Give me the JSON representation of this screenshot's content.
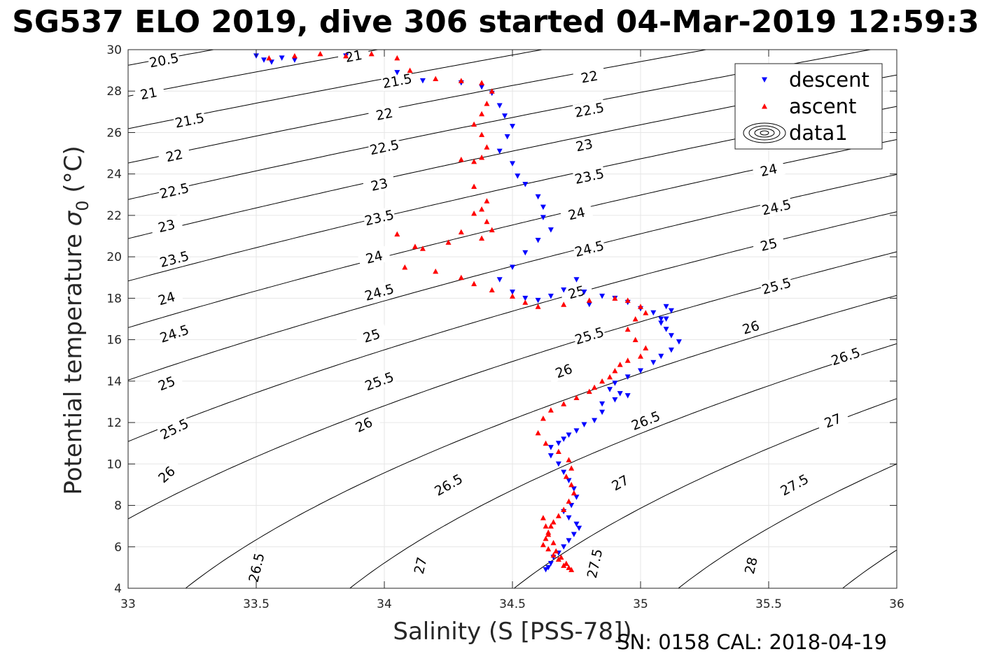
{
  "chart_data": {
    "type": "scatter",
    "title": "SG537 ELO 2019, dive 306 started 04-Mar-2019 12:59:3",
    "xlabel": "Salinity (S [PSS-78])",
    "ylabel_main": "Potential temperature ",
    "ylabel_sigma": "σ",
    "ylabel_sub": "0",
    "ylabel_unit": " (°C)",
    "footer": "SN: 0158  CAL: 2018-04-19",
    "xlim": [
      33,
      36
    ],
    "ylim": [
      4,
      30
    ],
    "grid": true,
    "legend_position": "top-right",
    "x_ticks": [
      "33",
      "33.5",
      "34",
      "34.5",
      "35",
      "35.5",
      "36"
    ],
    "y_ticks": [
      "4",
      "6",
      "8",
      "10",
      "12",
      "14",
      "16",
      "18",
      "20",
      "22",
      "24",
      "26",
      "28",
      "30"
    ],
    "legend": [
      {
        "label": "descent",
        "color": "#0000ff",
        "marker": "triangle-down"
      },
      {
        "label": "ascent",
        "color": "#ff0000",
        "marker": "triangle-up"
      },
      {
        "label": "data1",
        "color": "#000000",
        "marker": "contour"
      }
    ],
    "contour_levels": [
      20.5,
      21,
      21.5,
      22,
      22.5,
      23,
      23.5,
      24,
      24.5,
      25,
      25.5,
      26,
      26.5,
      27,
      27.5,
      28
    ],
    "contour_label_text": [
      "20.5",
      "21",
      "21.5",
      "22",
      "22.5",
      "23",
      "23.5",
      "24",
      "24.5",
      "25",
      "25.5",
      "26",
      "26.5",
      "27",
      "27.5",
      "28"
    ],
    "contour_labels": [
      {
        "level": 20.5,
        "s": 33.14,
        "t": 29.5
      },
      {
        "level": 21,
        "s": 33.08,
        "t": 27.9
      },
      {
        "level": 21,
        "s": 33.88,
        "t": 29.7
      },
      {
        "level": 21.5,
        "s": 33.24,
        "t": 26.6
      },
      {
        "level": 21.5,
        "s": 34.05,
        "t": 28.5
      },
      {
        "level": 22,
        "s": 33.18,
        "t": 24.9
      },
      {
        "level": 22,
        "s": 34.0,
        "t": 26.9
      },
      {
        "level": 22,
        "s": 34.8,
        "t": 28.7
      },
      {
        "level": 22.5,
        "s": 33.18,
        "t": 23.2
      },
      {
        "level": 22.5,
        "s": 34.0,
        "t": 25.3
      },
      {
        "level": 22.5,
        "s": 34.8,
        "t": 27.1
      },
      {
        "level": 23,
        "s": 33.15,
        "t": 21.5
      },
      {
        "level": 23,
        "s": 33.98,
        "t": 23.5
      },
      {
        "level": 23,
        "s": 34.78,
        "t": 25.4
      },
      {
        "level": 23.5,
        "s": 33.18,
        "t": 19.9
      },
      {
        "level": 23.5,
        "s": 33.98,
        "t": 21.9
      },
      {
        "level": 23.5,
        "s": 34.8,
        "t": 23.9
      },
      {
        "level": 24,
        "s": 33.15,
        "t": 18.0
      },
      {
        "level": 24,
        "s": 33.96,
        "t": 20.0
      },
      {
        "level": 24,
        "s": 34.75,
        "t": 22.1
      },
      {
        "level": 24,
        "s": 35.5,
        "t": 24.2
      },
      {
        "level": 24.5,
        "s": 33.18,
        "t": 16.3
      },
      {
        "level": 24.5,
        "s": 33.98,
        "t": 18.3
      },
      {
        "level": 24.5,
        "s": 34.8,
        "t": 20.4
      },
      {
        "level": 24.5,
        "s": 35.53,
        "t": 22.4
      },
      {
        "level": 25,
        "s": 33.15,
        "t": 13.9
      },
      {
        "level": 25,
        "s": 33.95,
        "t": 16.2
      },
      {
        "level": 25,
        "s": 34.75,
        "t": 18.3
      },
      {
        "level": 25,
        "s": 35.5,
        "t": 20.6
      },
      {
        "level": 25.5,
        "s": 33.18,
        "t": 11.7
      },
      {
        "level": 25.5,
        "s": 33.98,
        "t": 14.0
      },
      {
        "level": 25.5,
        "s": 34.8,
        "t": 16.2
      },
      {
        "level": 25.5,
        "s": 35.53,
        "t": 18.6
      },
      {
        "level": 26,
        "s": 33.15,
        "t": 9.5
      },
      {
        "level": 26,
        "s": 33.92,
        "t": 11.9
      },
      {
        "level": 26,
        "s": 34.7,
        "t": 14.5
      },
      {
        "level": 26,
        "s": 35.43,
        "t": 16.6
      },
      {
        "level": 26.5,
        "s": 33.5,
        "t": 5.0
      },
      {
        "level": 26.5,
        "s": 34.25,
        "t": 9.0
      },
      {
        "level": 26.5,
        "s": 35.02,
        "t": 12.1
      },
      {
        "level": 26.5,
        "s": 35.8,
        "t": 15.2
      },
      {
        "level": 27,
        "s": 34.14,
        "t": 5.1
      },
      {
        "level": 27,
        "s": 34.92,
        "t": 9.1
      },
      {
        "level": 27,
        "s": 35.75,
        "t": 12.1
      },
      {
        "level": 27.5,
        "s": 34.82,
        "t": 5.2
      },
      {
        "level": 27.5,
        "s": 35.6,
        "t": 9.0
      },
      {
        "level": 28,
        "s": 35.43,
        "t": 5.1
      }
    ],
    "series": [
      {
        "name": "descent",
        "color": "#0000ff",
        "marker": "triangle-down",
        "x": [
          33.5,
          33.53,
          33.56,
          33.6,
          33.65,
          33.85,
          34.05,
          34.15,
          34.3,
          34.38,
          34.42,
          34.45,
          34.47,
          34.5,
          34.48,
          34.45,
          34.5,
          34.52,
          34.55,
          34.6,
          34.62,
          34.62,
          34.65,
          34.6,
          34.55,
          34.5,
          34.45,
          34.5,
          34.55,
          34.6,
          34.65,
          34.7,
          34.75,
          34.78,
          34.8,
          34.85,
          34.9,
          34.95,
          35.0,
          35.05,
          35.08,
          35.1,
          35.12,
          35.1,
          35.08,
          35.1,
          35.12,
          35.15,
          35.12,
          35.08,
          35.05,
          35.0,
          34.95,
          34.9,
          34.88,
          34.92,
          34.95,
          34.9,
          34.85,
          34.85,
          34.82,
          34.78,
          34.75,
          34.72,
          34.7,
          34.68,
          34.65,
          34.65,
          34.68,
          34.7,
          34.72,
          34.74,
          34.75,
          34.73,
          34.7,
          34.72,
          34.75,
          34.76,
          34.74,
          34.72,
          34.7,
          34.68,
          34.66,
          34.65,
          34.64,
          34.63
        ],
        "y": [
          29.7,
          29.5,
          29.4,
          29.6,
          29.5,
          29.7,
          28.9,
          28.5,
          28.4,
          28.2,
          27.9,
          27.3,
          26.8,
          26.3,
          25.8,
          25.1,
          24.5,
          23.9,
          23.5,
          22.9,
          22.4,
          21.9,
          21.3,
          20.8,
          20.2,
          19.5,
          18.9,
          18.3,
          18.0,
          17.9,
          18.1,
          18.4,
          18.9,
          18.3,
          17.7,
          18.1,
          18.0,
          17.8,
          17.5,
          17.3,
          17.0,
          17.6,
          17.4,
          17.0,
          16.8,
          16.5,
          16.2,
          15.9,
          15.5,
          15.2,
          14.9,
          14.5,
          14.2,
          13.9,
          13.6,
          13.4,
          13.3,
          13.1,
          12.9,
          12.5,
          12.1,
          11.9,
          11.6,
          11.4,
          11.2,
          11.0,
          10.8,
          10.4,
          10.0,
          9.6,
          9.2,
          8.8,
          8.4,
          8.0,
          7.7,
          7.4,
          7.1,
          6.9,
          6.6,
          6.3,
          6.0,
          5.7,
          5.5,
          5.2,
          5.0,
          4.9
        ]
      },
      {
        "name": "ascent",
        "color": "#ff0000",
        "marker": "triangle-up",
        "x": [
          33.55,
          33.65,
          33.75,
          33.85,
          33.95,
          34.05,
          34.1,
          34.2,
          34.3,
          34.38,
          34.42,
          34.4,
          34.38,
          34.35,
          34.38,
          34.4,
          34.38,
          34.35,
          34.3,
          34.35,
          34.4,
          34.38,
          34.35,
          34.4,
          34.42,
          34.38,
          34.3,
          34.25,
          34.15,
          34.12,
          34.05,
          34.08,
          34.2,
          34.3,
          34.35,
          34.42,
          34.5,
          34.55,
          34.6,
          34.7,
          34.8,
          34.9,
          34.95,
          35.0,
          35.02,
          34.98,
          34.95,
          34.98,
          35.02,
          35.0,
          34.95,
          34.92,
          34.9,
          34.88,
          34.85,
          34.82,
          34.8,
          34.75,
          34.7,
          34.65,
          34.62,
          34.6,
          34.63,
          34.68,
          34.72,
          34.73,
          34.71,
          34.73,
          34.74,
          34.72,
          34.7,
          34.68,
          34.66,
          34.65,
          34.64,
          34.63,
          34.62,
          34.64,
          34.66,
          34.68,
          34.7,
          34.72,
          34.73,
          34.71,
          34.69,
          34.67,
          34.66,
          34.64,
          34.63,
          34.62
        ],
        "y": [
          29.6,
          29.7,
          29.8,
          29.7,
          29.8,
          29.6,
          29.0,
          28.6,
          28.5,
          28.4,
          28.0,
          27.4,
          26.9,
          26.4,
          25.9,
          25.3,
          24.8,
          24.6,
          24.7,
          23.4,
          22.7,
          22.3,
          22.1,
          21.7,
          21.3,
          20.9,
          21.2,
          20.7,
          20.4,
          20.5,
          21.1,
          19.5,
          19.3,
          19.0,
          18.7,
          18.4,
          18.1,
          17.8,
          17.6,
          17.7,
          17.9,
          18.0,
          17.9,
          17.6,
          17.3,
          17.0,
          16.5,
          16.0,
          15.6,
          15.2,
          15.0,
          14.8,
          14.5,
          14.2,
          14.0,
          13.7,
          13.5,
          13.2,
          12.9,
          12.6,
          12.2,
          11.5,
          11.0,
          10.6,
          10.2,
          9.8,
          9.4,
          9.0,
          8.6,
          8.2,
          7.8,
          7.5,
          7.2,
          7.0,
          6.7,
          6.4,
          6.1,
          5.9,
          5.6,
          5.4,
          5.1,
          5.0,
          4.9,
          5.2,
          5.5,
          5.8,
          6.2,
          6.6,
          7.0,
          7.4
        ]
      }
    ]
  }
}
